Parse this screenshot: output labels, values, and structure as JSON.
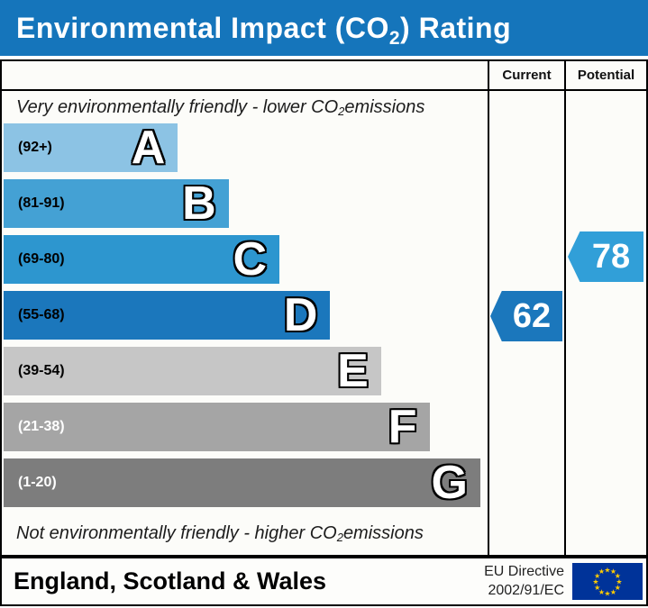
{
  "header": {
    "title_prefix": "Environmental Impact (CO",
    "title_sub": "2",
    "title_suffix": ") Rating",
    "bg_color": "#1575bb"
  },
  "table": {
    "col_current": "Current",
    "col_potential": "Potential"
  },
  "chart_data": {
    "type": "bar",
    "title": "Environmental Impact (CO2) Rating",
    "top_note_parts": {
      "prefix": "Very environmentally friendly - lower CO",
      "sub": "2",
      "suffix": " emissions"
    },
    "bottom_note_parts": {
      "prefix": "Not environmentally friendly - higher CO",
      "sub": "2",
      "suffix": " emissions"
    },
    "bands": [
      {
        "letter": "A",
        "range": "(92+)",
        "color": "#8cc3e4",
        "width_pct": 36,
        "label_color": "#000000"
      },
      {
        "letter": "B",
        "range": "(81-91)",
        "color": "#44a1d4",
        "width_pct": 46.5,
        "label_color": "#000000"
      },
      {
        "letter": "C",
        "range": "(69-80)",
        "color": "#2d96cf",
        "width_pct": 57,
        "label_color": "#000000"
      },
      {
        "letter": "D",
        "range": "(55-68)",
        "color": "#1b77bc",
        "width_pct": 67.5,
        "label_color": "#000000"
      },
      {
        "letter": "E",
        "range": "(39-54)",
        "color": "#c6c6c6",
        "width_pct": 78,
        "label_color": "#000000"
      },
      {
        "letter": "F",
        "range": "(21-38)",
        "color": "#a5a5a5",
        "width_pct": 88,
        "label_color": "#ffffff"
      },
      {
        "letter": "G",
        "range": "(1-20)",
        "color": "#7d7d7d",
        "width_pct": 98.5,
        "label_color": "#ffffff"
      }
    ],
    "current": {
      "value": "62",
      "band": "D",
      "color": "#1b77bc"
    },
    "potential": {
      "value": "78",
      "band": "C",
      "color": "#319fd8"
    }
  },
  "footer": {
    "region": "England, Scotland & Wales",
    "directive_line1": "EU Directive",
    "directive_line2": "2002/91/EC",
    "eu_flag": {
      "bg": "#003399",
      "star_color": "#ffcc00"
    }
  }
}
